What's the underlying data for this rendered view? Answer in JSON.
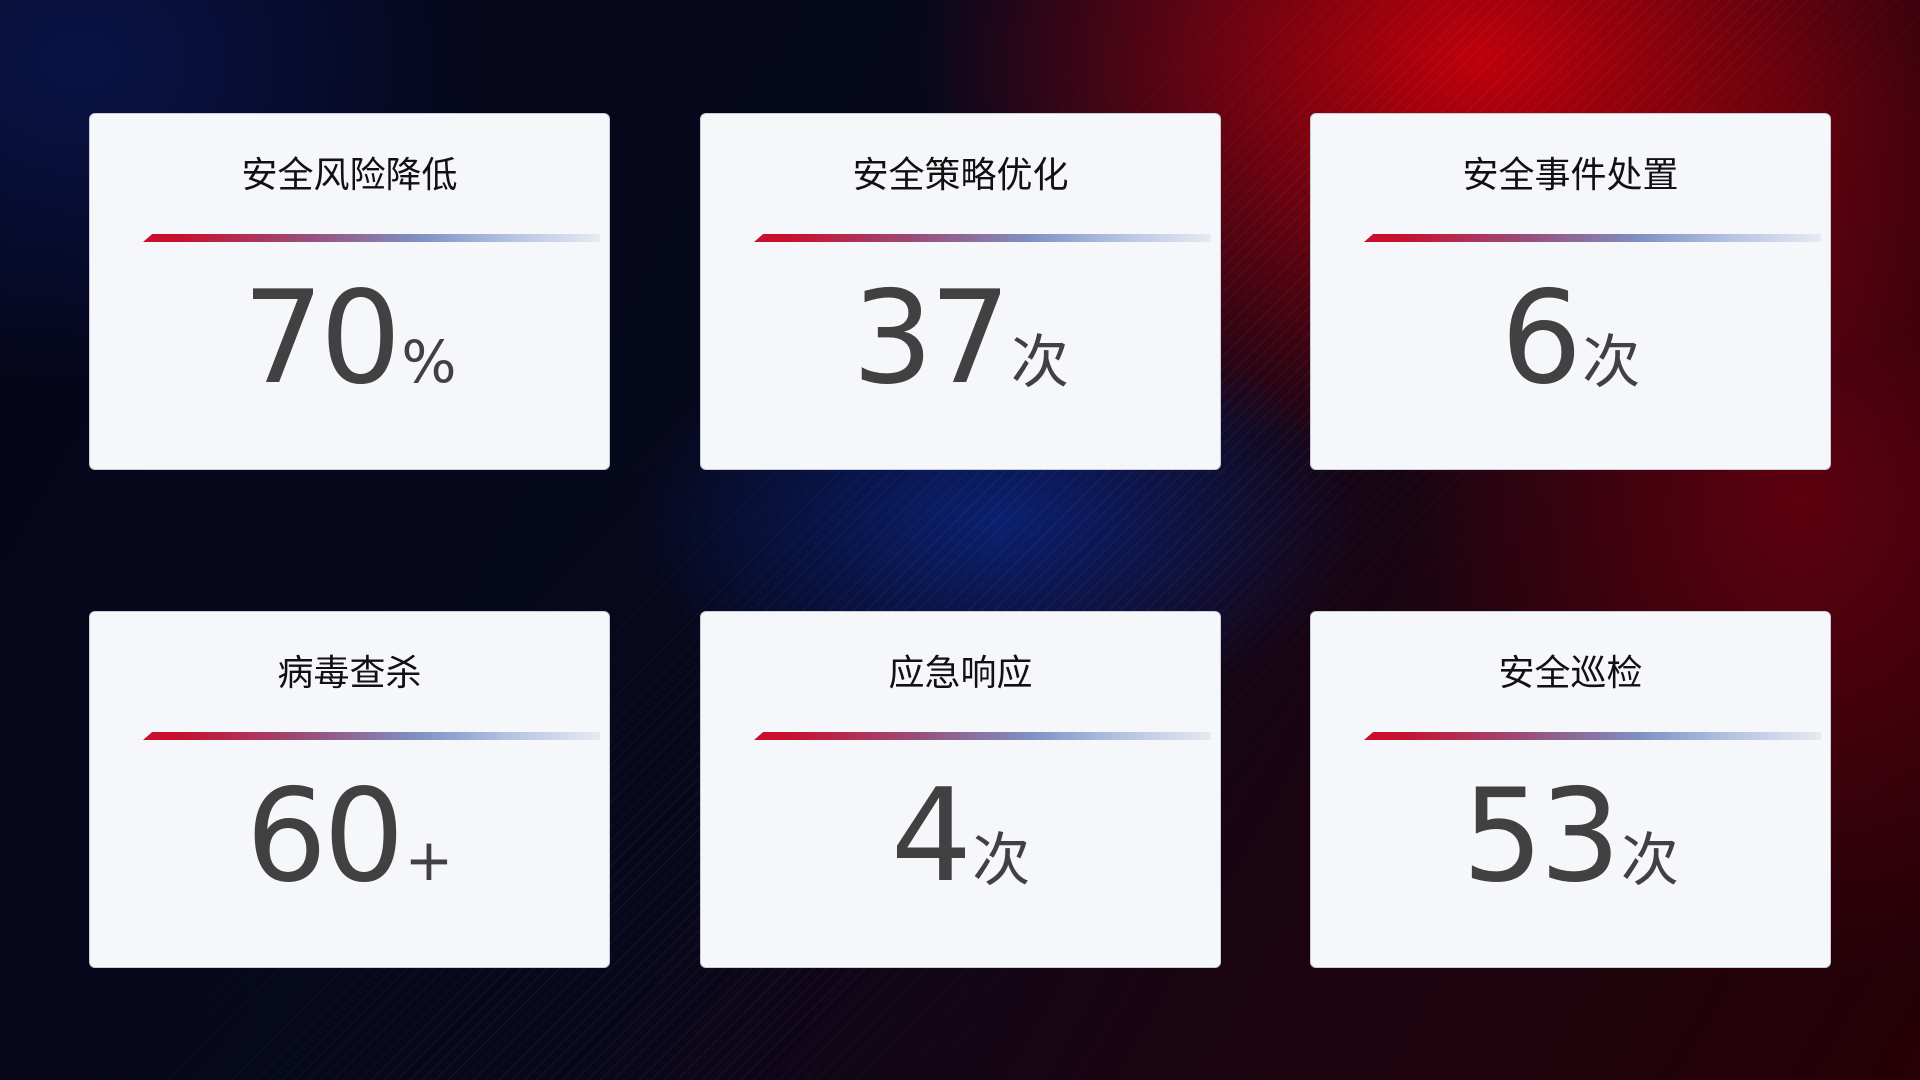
{
  "cards": [
    {
      "title": "安全风险降低",
      "value": "70",
      "unit": "%"
    },
    {
      "title": "安全策略优化",
      "value": "37",
      "unit": "次"
    },
    {
      "title": "安全事件处置",
      "value": "6",
      "unit": "次"
    },
    {
      "title": "病毒查杀",
      "value": "60",
      "unit": "+"
    },
    {
      "title": "应急响应",
      "value": "4",
      "unit": "次"
    },
    {
      "title": "安全巡检",
      "value": "53",
      "unit": "次"
    }
  ],
  "colors": {
    "accent_red": "#c8102e",
    "accent_blue": "#7f8fc2",
    "card_bg": "#f6f7fb",
    "number": "#414141"
  }
}
